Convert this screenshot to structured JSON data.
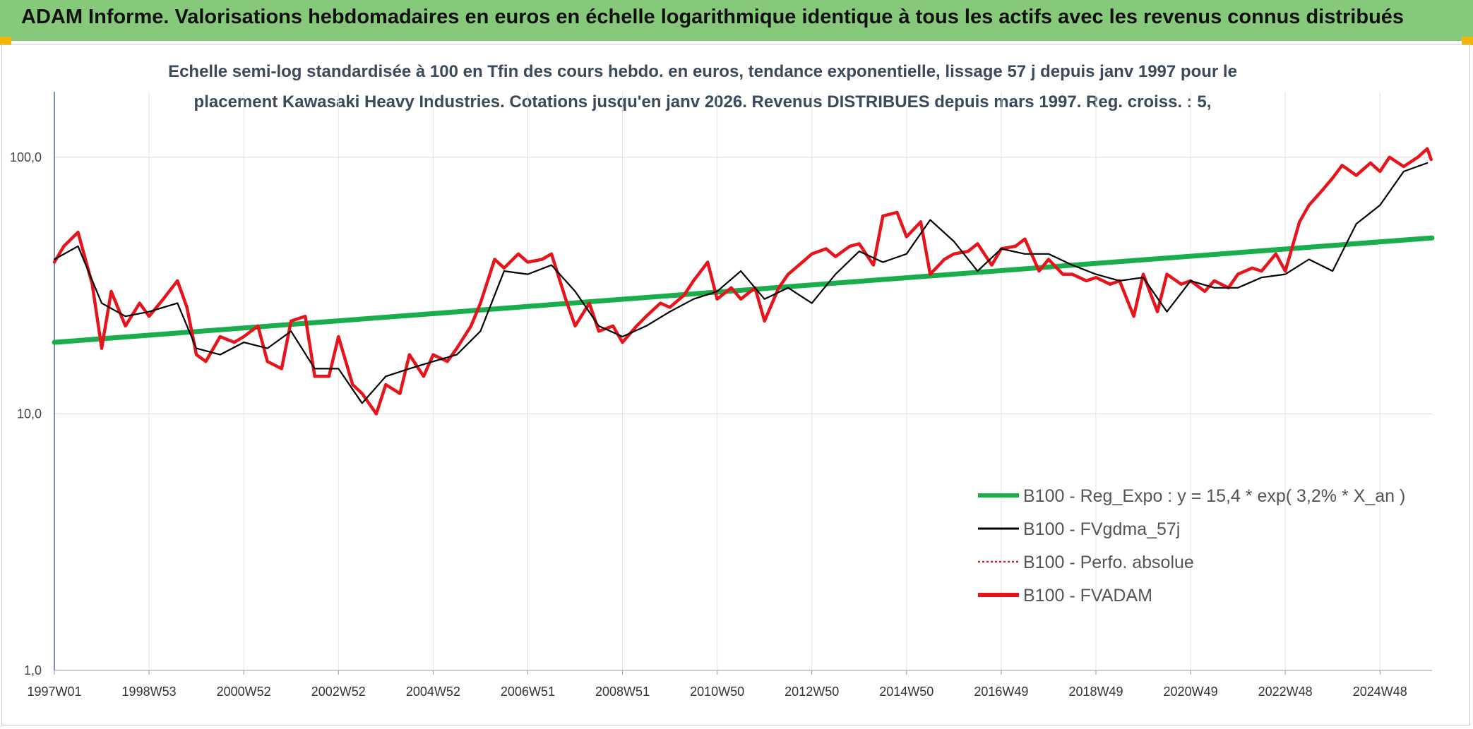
{
  "header": {
    "title": "ADAM Informe. Valorisations hebdomadaires en euros en échelle logarithmique identique à tous les actifs avec les revenus connus distribués"
  },
  "chart_data": {
    "type": "line",
    "title_line1": "Echelle semi-log standardisée à 100 en Tfin des cours hebdo. en euros, tendance exponentielle, lissage 57 j depuis janv 1997 pour le",
    "title_line2": "placement Kawasaki Heavy Industries. Cotations jusqu'en janv 2026. Revenus DISTRIBUES depuis mars 1997. Reg. croiss. : 5,",
    "y_scale": "log",
    "ylim": [
      1,
      180
    ],
    "y_ticks": [
      {
        "v": 1,
        "label": "1,0"
      },
      {
        "v": 10,
        "label": "10,0"
      },
      {
        "v": 100,
        "label": "100,0"
      }
    ],
    "x_range": [
      1997.0,
      2026.1
    ],
    "x_ticks": [
      {
        "t": 1997.0,
        "label": "1997W01"
      },
      {
        "t": 1999.0,
        "label": "1998W53"
      },
      {
        "t": 2001.0,
        "label": "2000W52"
      },
      {
        "t": 2003.0,
        "label": "2002W52"
      },
      {
        "t": 2005.0,
        "label": "2004W52"
      },
      {
        "t": 2007.0,
        "label": "2006W51"
      },
      {
        "t": 2009.0,
        "label": "2008W51"
      },
      {
        "t": 2011.0,
        "label": "2010W50"
      },
      {
        "t": 2013.0,
        "label": "2012W50"
      },
      {
        "t": 2015.0,
        "label": "2014W50"
      },
      {
        "t": 2017.0,
        "label": "2016W49"
      },
      {
        "t": 2019.0,
        "label": "2018W49"
      },
      {
        "t": 2021.0,
        "label": "2020W49"
      },
      {
        "t": 2023.0,
        "label": "2022W48"
      },
      {
        "t": 2025.0,
        "label": "2024W48"
      }
    ],
    "legend_position": "bottom-right",
    "series": [
      {
        "name": "B100 - Reg_Expo : y = 15,4 * exp( 3,2% *  X_an )",
        "color": "#1aad4b",
        "style": "solid-thick",
        "x": [
          1997.0,
          2026.1
        ],
        "y": [
          19.0,
          48.5
        ]
      },
      {
        "name": "B100 - FVgdma_57j",
        "color": "#000000",
        "style": "solid-thin",
        "x": [
          1997.0,
          1997.5,
          1998.0,
          1998.5,
          1999.0,
          1999.6,
          2000.0,
          2000.5,
          2001.0,
          2001.5,
          2002.0,
          2002.5,
          2003.0,
          2003.5,
          2004.0,
          2004.5,
          2005.0,
          2005.5,
          2006.0,
          2006.5,
          2007.0,
          2007.5,
          2008.0,
          2008.5,
          2009.0,
          2009.5,
          2010.0,
          2010.5,
          2011.0,
          2011.5,
          2012.0,
          2012.5,
          2013.0,
          2013.5,
          2014.0,
          2014.5,
          2015.0,
          2015.5,
          2016.0,
          2016.5,
          2017.0,
          2017.5,
          2018.0,
          2018.5,
          2019.0,
          2019.5,
          2020.0,
          2020.5,
          2021.0,
          2021.5,
          2022.0,
          2022.5,
          2023.0,
          2023.5,
          2024.0,
          2024.5,
          2025.0,
          2025.5,
          2026.0
        ],
        "y": [
          40,
          45,
          27,
          24,
          25,
          27,
          18,
          17,
          19,
          18,
          21,
          15,
          15,
          11,
          14,
          15,
          16,
          17,
          21,
          36,
          35,
          38,
          30,
          22,
          20,
          22,
          25,
          28,
          30,
          36,
          28,
          31,
          27,
          35,
          43,
          39,
          42,
          57,
          47,
          36,
          44,
          42,
          42,
          38,
          35,
          33,
          34,
          25,
          33,
          31,
          31,
          34,
          35,
          40,
          36,
          55,
          65,
          88,
          95
        ]
      },
      {
        "name": "B100 - Perfo. absolue",
        "color": "#d62020",
        "style": "dotted",
        "x": [],
        "y": []
      },
      {
        "name": "B100 - FVADAM",
        "color": "#e8141b",
        "style": "solid-thick",
        "x": [
          1997.0,
          1997.2,
          1997.5,
          1997.8,
          1998.0,
          1998.2,
          1998.5,
          1998.8,
          1999.0,
          1999.3,
          1999.6,
          1999.8,
          2000.0,
          2000.2,
          2000.5,
          2000.8,
          2001.0,
          2001.3,
          2001.5,
          2001.8,
          2002.0,
          2002.3,
          2002.5,
          2002.8,
          2003.0,
          2003.3,
          2003.5,
          2003.8,
          2004.0,
          2004.3,
          2004.5,
          2004.8,
          2005.0,
          2005.3,
          2005.5,
          2005.8,
          2006.0,
          2006.3,
          2006.5,
          2006.8,
          2007.0,
          2007.3,
          2007.5,
          2007.8,
          2008.0,
          2008.3,
          2008.5,
          2008.8,
          2009.0,
          2009.3,
          2009.5,
          2009.8,
          2010.0,
          2010.3,
          2010.5,
          2010.8,
          2011.0,
          2011.3,
          2011.5,
          2011.8,
          2012.0,
          2012.3,
          2012.5,
          2012.8,
          2013.0,
          2013.3,
          2013.5,
          2013.8,
          2014.0,
          2014.3,
          2014.5,
          2014.8,
          2015.0,
          2015.3,
          2015.5,
          2015.8,
          2016.0,
          2016.3,
          2016.5,
          2016.8,
          2017.0,
          2017.3,
          2017.5,
          2017.8,
          2018.0,
          2018.3,
          2018.5,
          2018.8,
          2019.0,
          2019.3,
          2019.5,
          2019.8,
          2020.0,
          2020.3,
          2020.5,
          2020.8,
          2021.0,
          2021.3,
          2021.5,
          2021.8,
          2022.0,
          2022.3,
          2022.5,
          2022.8,
          2023.0,
          2023.3,
          2023.5,
          2023.8,
          2024.0,
          2024.2,
          2024.5,
          2024.8,
          2025.0,
          2025.2,
          2025.5,
          2025.8,
          2026.0,
          2026.08
        ],
        "y": [
          39,
          45,
          51,
          32,
          18,
          30,
          22,
          27,
          24,
          28,
          33,
          26,
          17,
          16,
          20,
          19,
          20,
          22,
          16,
          15,
          23,
          24,
          14,
          14,
          20,
          13,
          12,
          10,
          13,
          12,
          17,
          14,
          17,
          16,
          18,
          22,
          27,
          40,
          37,
          42,
          39,
          40,
          42,
          28,
          22,
          27,
          21,
          22,
          19,
          22,
          24,
          27,
          26,
          29,
          33,
          39,
          28,
          31,
          28,
          31,
          23,
          31,
          35,
          39,
          42,
          44,
          41,
          45,
          46,
          38,
          59,
          61,
          49,
          56,
          35,
          40,
          42,
          43,
          46,
          38,
          44,
          45,
          48,
          36,
          40,
          35,
          35,
          33,
          34,
          32,
          33,
          24,
          35,
          25,
          35,
          32,
          33,
          30,
          33,
          31,
          35,
          37,
          36,
          42,
          36,
          56,
          65,
          75,
          83,
          93,
          85,
          95,
          88,
          100,
          92,
          100,
          108,
          98
        ]
      }
    ]
  }
}
